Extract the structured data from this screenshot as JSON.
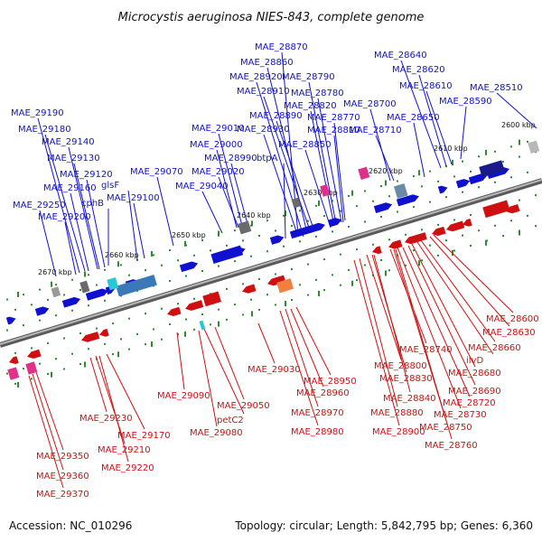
{
  "header": {
    "title": "Microcystis aeruginosa NIES-843, complete genome"
  },
  "footer": {
    "accession": "Accession: NC_010296",
    "summary": "Topology: circular; Length: 5,842,795 bp; Genes: 6,360"
  },
  "scale": {
    "ticks": [
      "2600 kbp",
      "2610 kbp",
      "2620 kbp",
      "2630 kbp",
      "2640 kbp",
      "2650 kbp",
      "2660 kbp",
      "2670 kbp"
    ]
  },
  "colors": {
    "forward": "#1010d0",
    "reverse": "#d01010",
    "backbone": "#808080",
    "tick": "#2e8b2e"
  },
  "genes": {
    "forward": [
      "MAE_28870",
      "MAE_28860",
      "MAE_28920",
      "MAE_28790",
      "MAE_28910",
      "MAE_28780",
      "MAE_28820",
      "MAE_28890",
      "MAE_28770",
      "MAE_28930",
      "MAE_28810",
      "btpA",
      "MAE_28850",
      "MAE_28640",
      "MAE_28620",
      "MAE_28610",
      "MAE_28510",
      "MAE_28590",
      "MAE_28650",
      "MAE_28700",
      "MAE_28710",
      "MAE_29190",
      "MAE_29180",
      "MAE_29140",
      "MAE_29130",
      "MAE_29120",
      "MAE_29160",
      "glsF",
      "cphB",
      "MAE_29100",
      "MAE_29070",
      "MAE_29010",
      "MAE_29000",
      "MAE_28990",
      "MAE_29020",
      "MAE_29040",
      "MAE_29250",
      "MAE_29200"
    ],
    "reverse": [
      "MAE_28600",
      "MAE_28630",
      "MAE_28660",
      "MAE_28740",
      "ilvD",
      "MAE_28680",
      "MAE_28800",
      "MAE_28830",
      "MAE_28690",
      "MAE_28720",
      "MAE_29030",
      "MAE_28950",
      "MAE_28840",
      "MAE_28730",
      "MAE_28960",
      "MAE_28880",
      "MAE_28750",
      "MAE_28970",
      "MAE_28900",
      "MAE_28760",
      "MAE_28980",
      "MAE_29090",
      "MAE_29050",
      "petC2",
      "MAE_29080",
      "MAE_29230",
      "MAE_29170",
      "MAE_29210",
      "MAE_29220",
      "MAE_29350",
      "MAE_29360",
      "MAE_29370"
    ]
  }
}
